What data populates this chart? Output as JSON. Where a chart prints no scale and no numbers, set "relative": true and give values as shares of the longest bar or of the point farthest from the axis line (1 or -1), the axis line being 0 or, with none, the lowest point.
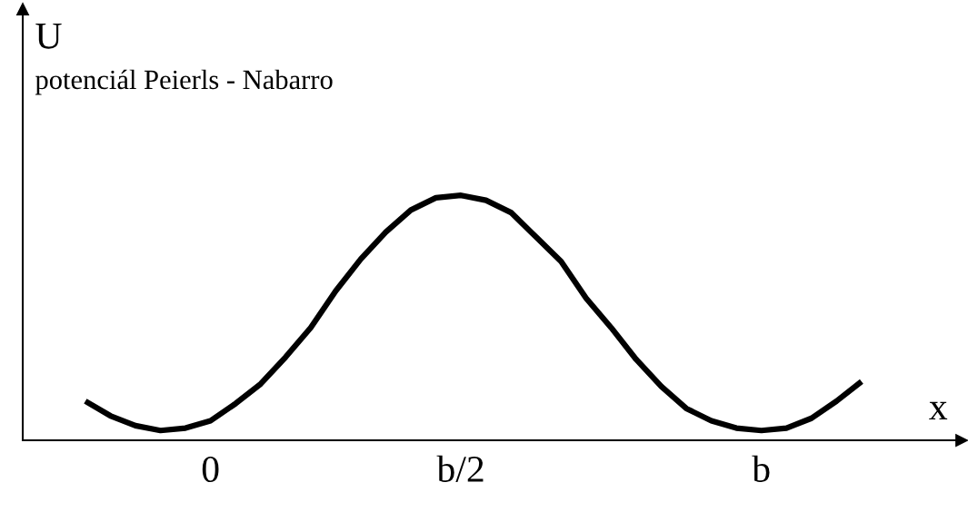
{
  "chart_data": {
    "type": "line",
    "relative": true,
    "ylabel": "U",
    "subtitle": "potenciál Peierls - Nabarro",
    "xlabel": "x",
    "categories": [
      null,
      null,
      null,
      null,
      null,
      "0",
      null,
      null,
      null,
      null,
      null,
      null,
      null,
      null,
      null,
      "b/2",
      null,
      null,
      null,
      null,
      null,
      null,
      null,
      null,
      null,
      null,
      null,
      "b",
      null,
      null,
      null,
      null
    ],
    "grid": false,
    "legend": false,
    "marker": "none",
    "line_style": "solid",
    "series": [
      {
        "color": "#000000",
        "values": [
          0.16,
          0.1,
          0.06,
          0.04,
          0.05,
          0.08,
          0.15,
          0.23,
          0.34,
          0.46,
          0.61,
          0.74,
          0.85,
          0.94,
          0.99,
          1.0,
          0.98,
          0.93,
          0.83,
          0.73,
          0.58,
          0.46,
          0.33,
          0.22,
          0.13,
          0.08,
          0.05,
          0.04,
          0.05,
          0.09,
          0.16,
          0.24
        ]
      }
    ]
  }
}
